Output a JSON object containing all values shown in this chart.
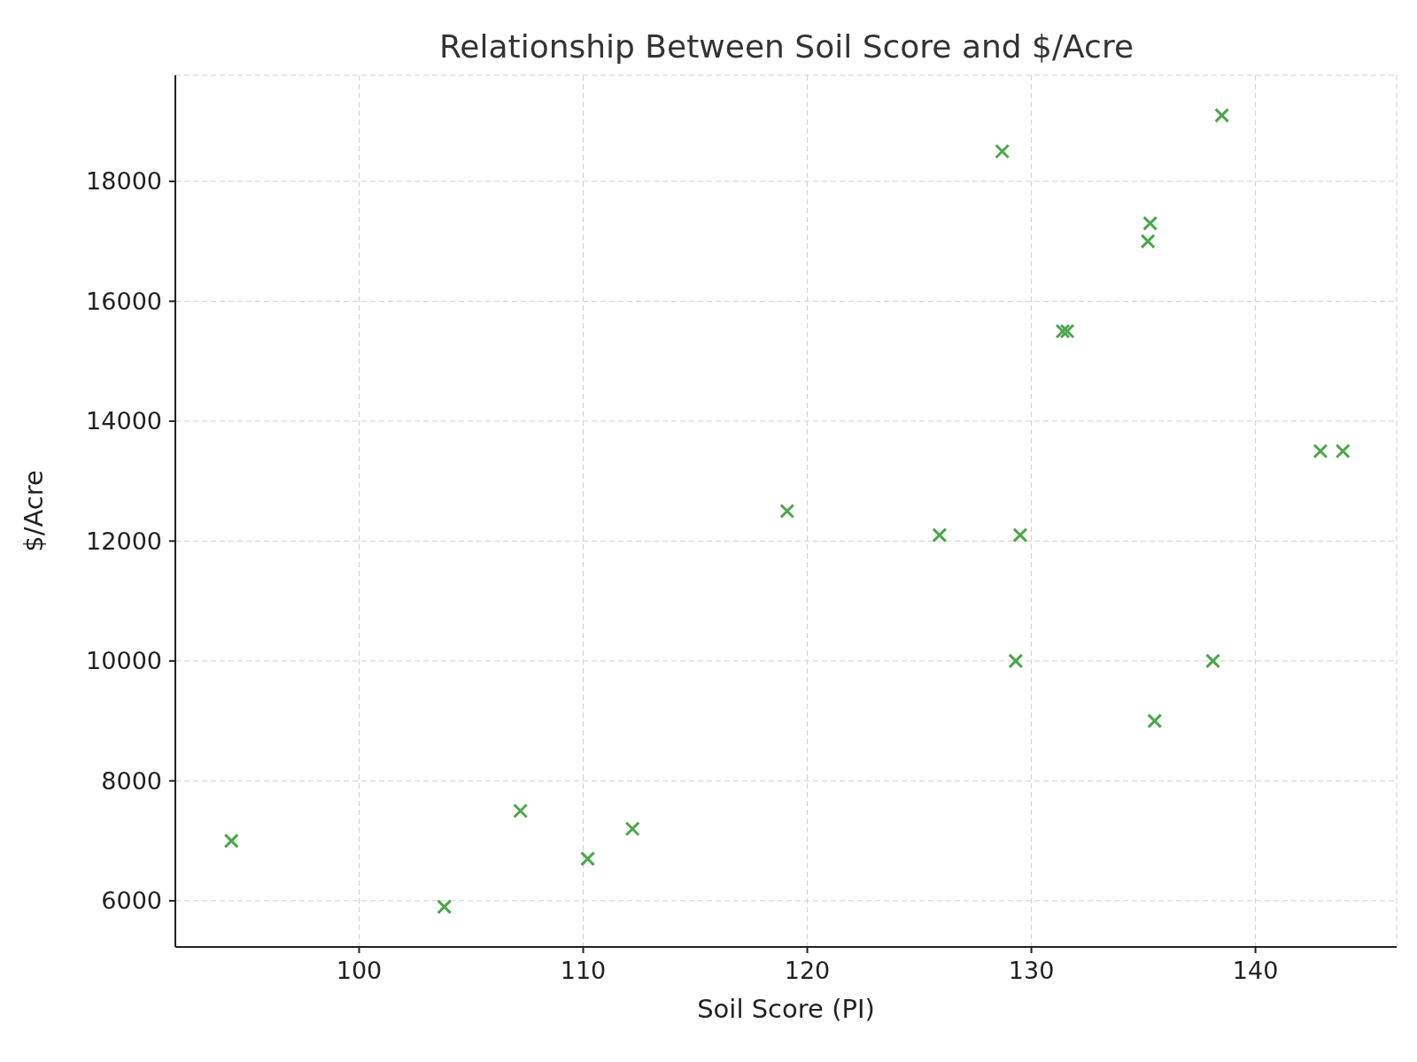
{
  "chart_data": {
    "type": "scatter",
    "title": "Relationship Between Soil Score and $/Acre",
    "xlabel": "Soil Score (PI)",
    "ylabel": "$/Acre",
    "x": [
      94.3,
      103.8,
      107.2,
      110.2,
      112.2,
      119.1,
      125.9,
      128.7,
      129.3,
      129.5,
      131.4,
      131.6,
      135.2,
      135.3,
      135.5,
      138.1,
      138.5,
      142.9,
      143.9
    ],
    "series": [
      {
        "color": "#4ca64c",
        "values": [
          7000,
          5900,
          7500,
          6700,
          7200,
          12500,
          12100,
          18500,
          10000,
          12100,
          15500,
          15500,
          17000,
          17300,
          9000,
          10000,
          19100,
          13500,
          13500
        ]
      }
    ],
    "xlim": [
      91.8,
      146.3
    ],
    "xticks": [
      100,
      110,
      120,
      130,
      140
    ],
    "ylim": [
      5230,
      19770
    ],
    "yticks": [
      6000,
      8000,
      10000,
      12000,
      14000,
      16000,
      18000
    ],
    "grid": true,
    "marker": "cross"
  }
}
